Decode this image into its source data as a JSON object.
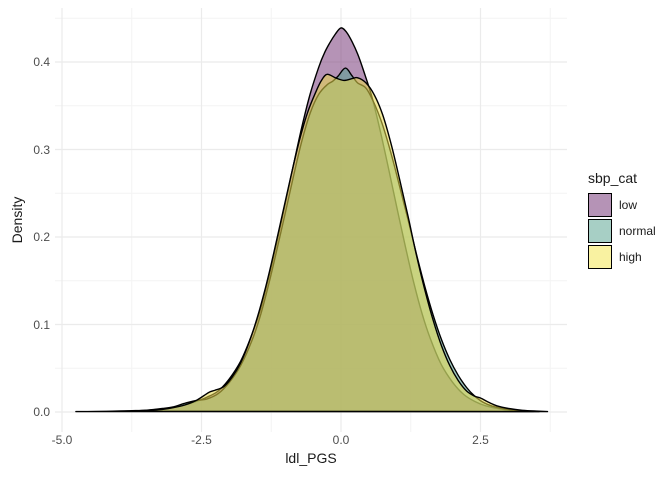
{
  "chart_data": {
    "type": "area",
    "subtype": "overlaid-density",
    "title": "",
    "xlabel": "ldl_PGS",
    "ylabel": "Density",
    "xlim": [
      -5.1,
      4.1
    ],
    "ylim": [
      0,
      0.46
    ],
    "grid": {
      "show": true,
      "major_color": "#ebebeb",
      "minor_color": "#f3f3f3",
      "background": "#ffffff"
    },
    "x_ticks": {
      "values": [
        -5.0,
        -2.5,
        0.0,
        2.5
      ],
      "labels": [
        "-5.0",
        "-2.5",
        "0.0",
        "2.5"
      ]
    },
    "y_ticks": {
      "values": [
        0.0,
        0.1,
        0.2,
        0.3,
        0.4
      ],
      "labels": [
        "0.0",
        "0.1",
        "0.2",
        "0.3",
        "0.4"
      ]
    },
    "x_minor": [
      -3.75,
      -1.25,
      1.25,
      3.75
    ],
    "y_minor": [
      0.05,
      0.15,
      0.25,
      0.35,
      0.45
    ],
    "legend": {
      "title": "sbp_cat",
      "position": "right"
    },
    "style": {
      "outline_color": "#000000",
      "outline_width": 1.4,
      "fill_opacity": 0.55
    },
    "series": [
      {
        "name": "low",
        "fill": "#783b7a",
        "swatch": "#b593b6",
        "peak": {
          "x": 0.0,
          "density": 0.439
        },
        "points": [
          [
            -3.9,
            0.0008
          ],
          [
            -3.6,
            0.0015
          ],
          [
            -3.3,
            0.003
          ],
          [
            -3.0,
            0.005
          ],
          [
            -2.8,
            0.008
          ],
          [
            -2.6,
            0.012
          ],
          [
            -2.4,
            0.017
          ],
          [
            -2.2,
            0.024
          ],
          [
            -2.0,
            0.038
          ],
          [
            -1.8,
            0.058
          ],
          [
            -1.6,
            0.088
          ],
          [
            -1.45,
            0.116
          ],
          [
            -1.3,
            0.153
          ],
          [
            -1.15,
            0.194
          ],
          [
            -1.0,
            0.238
          ],
          [
            -0.85,
            0.283
          ],
          [
            -0.7,
            0.326
          ],
          [
            -0.55,
            0.364
          ],
          [
            -0.4,
            0.394
          ],
          [
            -0.3,
            0.41
          ],
          [
            -0.2,
            0.422
          ],
          [
            -0.1,
            0.432
          ],
          [
            0.0,
            0.439
          ],
          [
            0.1,
            0.434
          ],
          [
            0.2,
            0.423
          ],
          [
            0.3,
            0.409
          ],
          [
            0.4,
            0.391
          ],
          [
            0.55,
            0.361
          ],
          [
            0.7,
            0.322
          ],
          [
            0.85,
            0.279
          ],
          [
            1.0,
            0.234
          ],
          [
            1.15,
            0.19
          ],
          [
            1.3,
            0.149
          ],
          [
            1.45,
            0.113
          ],
          [
            1.6,
            0.084
          ],
          [
            1.8,
            0.054
          ],
          [
            2.0,
            0.034
          ],
          [
            2.2,
            0.02
          ],
          [
            2.4,
            0.012
          ],
          [
            2.6,
            0.007
          ],
          [
            2.9,
            0.003
          ],
          [
            3.2,
            0.0015
          ],
          [
            3.45,
            0.0007
          ]
        ]
      },
      {
        "name": "normal",
        "fill": "#55a18f",
        "swatch": "#a7cfc5",
        "peak": {
          "x": 0.08,
          "density": 0.393
        },
        "points": [
          [
            -4.75,
            0.0004
          ],
          [
            -4.4,
            0.0006
          ],
          [
            -4.1,
            0.0009
          ],
          [
            -3.8,
            0.0014
          ],
          [
            -3.5,
            0.002
          ],
          [
            -3.2,
            0.004
          ],
          [
            -3.0,
            0.006
          ],
          [
            -2.8,
            0.01
          ],
          [
            -2.6,
            0.013
          ],
          [
            -2.4,
            0.015
          ],
          [
            -2.2,
            0.021
          ],
          [
            -2.0,
            0.034
          ],
          [
            -1.8,
            0.053
          ],
          [
            -1.6,
            0.081
          ],
          [
            -1.45,
            0.109
          ],
          [
            -1.3,
            0.145
          ],
          [
            -1.15,
            0.185
          ],
          [
            -1.0,
            0.227
          ],
          [
            -0.85,
            0.27
          ],
          [
            -0.7,
            0.31
          ],
          [
            -0.55,
            0.342
          ],
          [
            -0.4,
            0.363
          ],
          [
            -0.25,
            0.374
          ],
          [
            -0.15,
            0.378
          ],
          [
            -0.05,
            0.384
          ],
          [
            0.08,
            0.393
          ],
          [
            0.2,
            0.384
          ],
          [
            0.3,
            0.376
          ],
          [
            0.45,
            0.37
          ],
          [
            0.6,
            0.352
          ],
          [
            0.75,
            0.327
          ],
          [
            0.9,
            0.295
          ],
          [
            1.05,
            0.258
          ],
          [
            1.2,
            0.22
          ],
          [
            1.35,
            0.181
          ],
          [
            1.5,
            0.144
          ],
          [
            1.65,
            0.111
          ],
          [
            1.8,
            0.083
          ],
          [
            1.95,
            0.06
          ],
          [
            2.1,
            0.042
          ],
          [
            2.25,
            0.028
          ],
          [
            2.4,
            0.018
          ],
          [
            2.55,
            0.011
          ],
          [
            2.7,
            0.007
          ],
          [
            2.9,
            0.004
          ],
          [
            3.1,
            0.002
          ],
          [
            3.3,
            0.001
          ],
          [
            3.55,
            0.0005
          ]
        ]
      },
      {
        "name": "high",
        "fill": "#e9da4b",
        "swatch": "#f9f2a1",
        "peak": {
          "x": -0.25,
          "density": 0.386
        },
        "points": [
          [
            -3.95,
            0.0008
          ],
          [
            -3.7,
            0.0013
          ],
          [
            -3.45,
            0.002
          ],
          [
            -3.2,
            0.003
          ],
          [
            -3.0,
            0.005
          ],
          [
            -2.8,
            0.008
          ],
          [
            -2.6,
            0.013
          ],
          [
            -2.45,
            0.019
          ],
          [
            -2.35,
            0.023
          ],
          [
            -2.25,
            0.025
          ],
          [
            -2.1,
            0.029
          ],
          [
            -1.95,
            0.04
          ],
          [
            -1.8,
            0.056
          ],
          [
            -1.65,
            0.079
          ],
          [
            -1.5,
            0.108
          ],
          [
            -1.35,
            0.143
          ],
          [
            -1.2,
            0.183
          ],
          [
            -1.05,
            0.226
          ],
          [
            -0.9,
            0.269
          ],
          [
            -0.75,
            0.309
          ],
          [
            -0.6,
            0.342
          ],
          [
            -0.45,
            0.366
          ],
          [
            -0.35,
            0.379
          ],
          [
            -0.25,
            0.386
          ],
          [
            -0.1,
            0.382
          ],
          [
            0.05,
            0.379
          ],
          [
            0.2,
            0.381
          ],
          [
            0.3,
            0.382
          ],
          [
            0.45,
            0.376
          ],
          [
            0.6,
            0.362
          ],
          [
            0.75,
            0.339
          ],
          [
            0.9,
            0.306
          ],
          [
            1.05,
            0.266
          ],
          [
            1.2,
            0.224
          ],
          [
            1.35,
            0.18
          ],
          [
            1.5,
            0.14
          ],
          [
            1.65,
            0.105
          ],
          [
            1.8,
            0.076
          ],
          [
            1.95,
            0.053
          ],
          [
            2.1,
            0.036
          ],
          [
            2.25,
            0.024
          ],
          [
            2.4,
            0.018
          ],
          [
            2.5,
            0.016
          ],
          [
            2.65,
            0.011
          ],
          [
            2.8,
            0.007
          ],
          [
            3.0,
            0.004
          ],
          [
            3.25,
            0.002
          ],
          [
            3.5,
            0.001
          ],
          [
            3.7,
            0.0005
          ]
        ]
      }
    ]
  }
}
